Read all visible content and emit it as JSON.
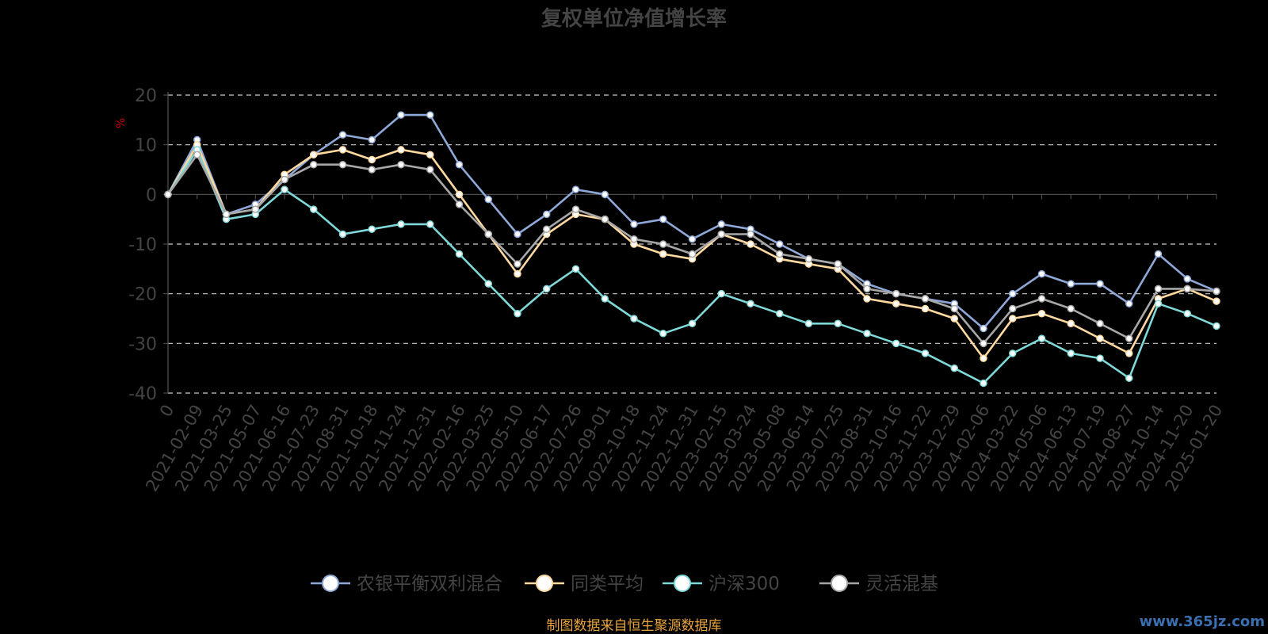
{
  "chart_data": {
    "type": "line",
    "title": "复权单位净值增长率",
    "ylabel": "%",
    "xlabel": "",
    "ylim": [
      -40,
      20
    ],
    "yticks": [
      20,
      10,
      0,
      -10,
      -20,
      -30,
      -40
    ],
    "grid": true,
    "legend_position": "bottom",
    "categories": [
      "0",
      "2021-02-09",
      "2021-03-25",
      "2021-05-07",
      "2021-06-16",
      "2021-07-23",
      "2021-08-31",
      "2021-10-18",
      "2021-11-24",
      "2021-12-31",
      "2022-02-16",
      "2022-03-25",
      "2022-05-10",
      "2022-06-17",
      "2022-07-26",
      "2022-09-01",
      "2022-10-18",
      "2022-11-24",
      "2022-12-31",
      "2023-02-15",
      "2023-03-24",
      "2023-05-08",
      "2023-06-14",
      "2023-07-25",
      "2023-08-31",
      "2023-10-16",
      "2023-11-22",
      "2023-12-29",
      "2024-02-06",
      "2024-03-22",
      "2024-05-06",
      "2024-06-13",
      "2024-07-19",
      "2024-08-27",
      "2024-10-14",
      "2024-11-20",
      "2025-01-20"
    ],
    "series": [
      {
        "name": "农银平衡双利混合",
        "color": "#8fa8d8",
        "values": [
          0,
          11,
          -4,
          -2,
          3,
          8,
          12,
          11,
          16,
          16,
          6,
          -1,
          -8,
          -4,
          1,
          0,
          -6,
          -5,
          -9,
          -6,
          -7,
          -10,
          -13,
          -14,
          -18,
          -20,
          -21,
          -22,
          -27,
          -20,
          -16,
          -18,
          -18,
          -22,
          -12,
          -17,
          -19.5
        ]
      },
      {
        "name": "同类平均",
        "color": "#ffd9a0",
        "values": [
          0,
          10,
          -4,
          -3,
          4,
          8,
          9,
          7,
          9,
          8,
          0,
          -8,
          -16,
          -8,
          -4,
          -5,
          -10,
          -12,
          -13,
          -8,
          -10,
          -13,
          -14,
          -15,
          -21,
          -22,
          -23,
          -25,
          -33,
          -25,
          -24,
          -26,
          -29,
          -32,
          -21,
          -19,
          -21.5
        ]
      },
      {
        "name": "沪深300",
        "color": "#7fd9d9",
        "values": [
          0,
          9,
          -5,
          -4,
          1,
          -3,
          -8,
          -7,
          -6,
          -6,
          -12,
          -18,
          -24,
          -19,
          -15,
          -21,
          -25,
          -28,
          -26,
          -20,
          -22,
          -24,
          -26,
          -26,
          -28,
          -30,
          -32,
          -35,
          -38,
          -32,
          -29,
          -32,
          -33,
          -37,
          -22,
          -24,
          -26.5
        ]
      },
      {
        "name": "灵活混基",
        "color": "#a8a8a8",
        "values": [
          0,
          8,
          -4,
          -3,
          3,
          6,
          6,
          5,
          6,
          5,
          -2,
          -8,
          -14,
          -7,
          -3,
          -5,
          -9,
          -10,
          -12,
          -8,
          -8,
          -12,
          -13,
          -14,
          -19,
          -20,
          -21,
          -23,
          -30,
          -23,
          -21,
          -23,
          -26,
          -29,
          -19,
          -19,
          -19.5
        ]
      }
    ]
  },
  "legend": [
    {
      "label": "农银平衡双利混合",
      "color": "#8fa8d8"
    },
    {
      "label": "同类平均",
      "color": "#ffd9a0"
    },
    {
      "label": "沪深300",
      "color": "#7fd9d9"
    },
    {
      "label": "灵活混基",
      "color": "#a8a8a8"
    }
  ],
  "source": "制图数据来自恒生聚源数据库",
  "watermark": "www.365jz.com",
  "colors": {
    "background": "#000000",
    "axis": "#555555",
    "text": "#444444",
    "grid": "#cccccc",
    "ylabel": "#cc0000",
    "source": "#e8a33c",
    "watermark": "#3a6fb0"
  }
}
